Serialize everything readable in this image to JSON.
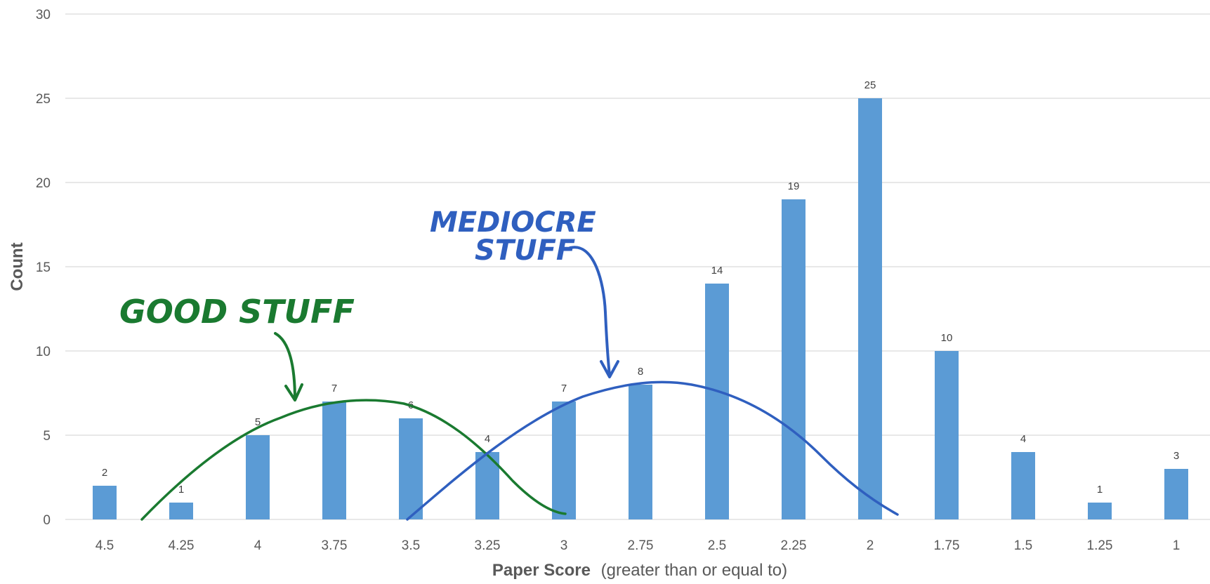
{
  "chart_data": {
    "type": "bar",
    "categories": [
      "4.5",
      "4.25",
      "4",
      "3.75",
      "3.5",
      "3.25",
      "3",
      "2.75",
      "2.5",
      "2.25",
      "2",
      "1.75",
      "1.5",
      "1.25",
      "1"
    ],
    "values": [
      2,
      1,
      5,
      7,
      6,
      4,
      7,
      8,
      14,
      19,
      25,
      10,
      4,
      1,
      3
    ],
    "yticks": [
      "0",
      "5",
      "10",
      "15",
      "20",
      "25",
      "30"
    ],
    "ylim": [
      0,
      30
    ],
    "ylabel": "Count",
    "xlabel_bold": "Paper Score",
    "xlabel_rest": "(greater than or equal to)",
    "grid": "horizontal",
    "bar_color": "#5b9bd5",
    "annotations": [
      {
        "text": "GOOD STUFF",
        "color": "#1a7a30"
      },
      {
        "text_line1": "MEDIOCRE",
        "text_line2": "STUFF",
        "color": "#2f5fbf"
      }
    ]
  }
}
